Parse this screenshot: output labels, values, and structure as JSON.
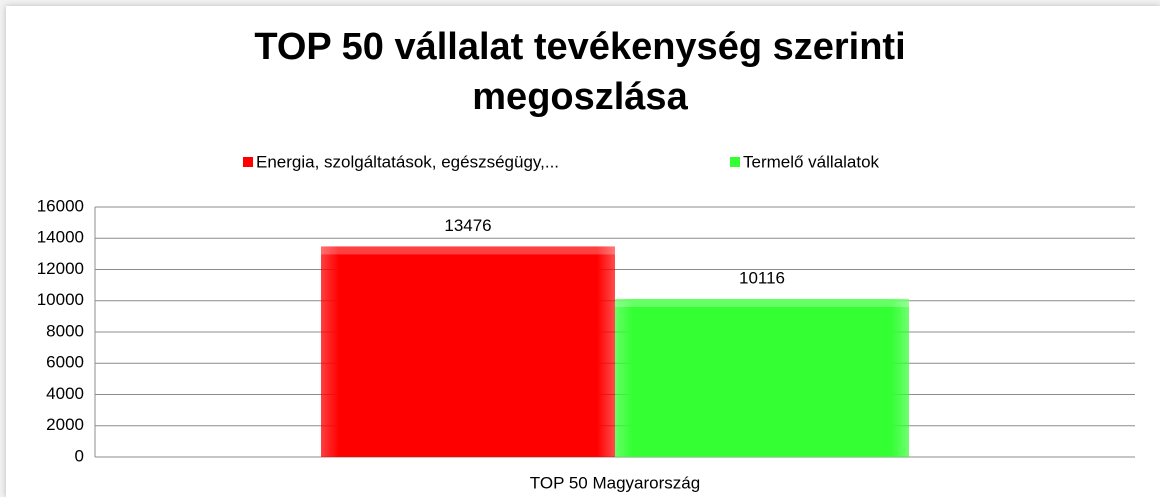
{
  "chart_data": {
    "type": "bar",
    "title": "TOP 50 vállalat tevékenység szerinti megoszlása",
    "categories": [
      "TOP 50 Magyarország"
    ],
    "series": [
      {
        "name": "Energia, szolgáltatások, egészségügy,...",
        "color": "#ff0000",
        "values": [
          13476
        ]
      },
      {
        "name": "Termelő vállalatok",
        "color": "#33ff33",
        "values": [
          10116
        ]
      }
    ],
    "ylim": [
      0,
      16000
    ],
    "yticks": [
      0,
      2000,
      4000,
      6000,
      8000,
      10000,
      12000,
      14000,
      16000
    ],
    "grid": true,
    "legend": "top"
  }
}
